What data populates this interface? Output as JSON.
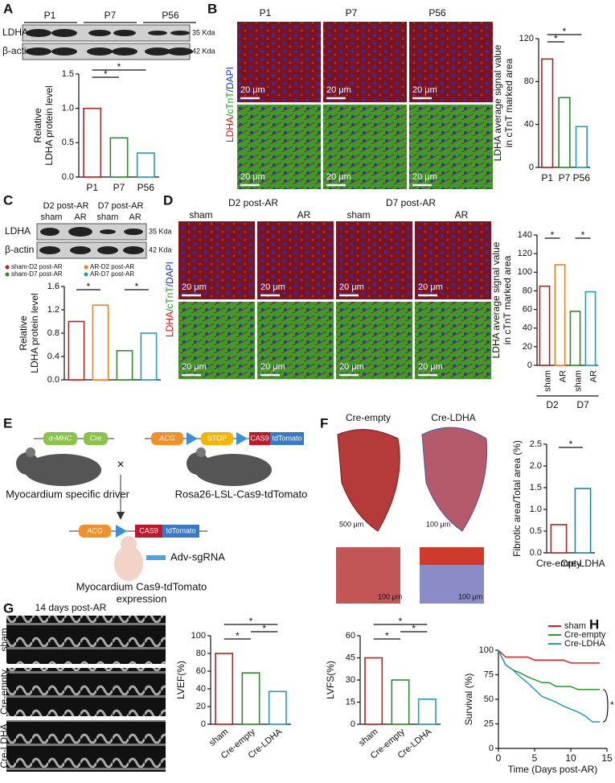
{
  "figure": {
    "panel_labels": [
      "A",
      "B",
      "C",
      "D",
      "E",
      "F",
      "G",
      "H"
    ],
    "a_blot": {
      "lanes": [
        "P1",
        "P7",
        "P56"
      ],
      "rows": [
        "LDHA",
        "β-actin"
      ],
      "sizes": [
        "35 Kda",
        "42 Kda"
      ]
    },
    "b_images": {
      "columns": [
        "P1",
        "P7",
        "P56"
      ],
      "stain": [
        "LDHA",
        "/cTnT",
        "/DAPI"
      ],
      "scale": "20 μm"
    },
    "c_blot": {
      "groups": [
        "D2 post-AR",
        "D7 post-AR"
      ],
      "lanes": [
        "sham",
        "AR",
        "sham",
        "AR"
      ],
      "rows": [
        "LDHA",
        "β-actin"
      ],
      "sizes": [
        "35 Kda",
        "42 Kda"
      ]
    },
    "d_images": {
      "groups": [
        "D2 post-AR",
        "D7 post-AR"
      ],
      "lanes": [
        "sham",
        "AR",
        "sham",
        "AR"
      ],
      "stain": [
        "LDHA",
        "/cTnT",
        "/DAPI"
      ],
      "scale": "20 μm"
    },
    "e_schematic": {
      "driver_gene": "α-MHC",
      "driver_cre": "Cre",
      "reporter": [
        "ACG",
        "STOP",
        "CAS9",
        "tdTomato"
      ],
      "cross": "×",
      "driver": "Myocardium specific driver",
      "reporter_mouse": "Rosa26-LSL-Cas9-tdTomato",
      "offspring": [
        "ACG",
        "CAS9",
        "tdTomato"
      ],
      "virus": "Adv-sgRNA",
      "result": [
        "Myocardium Cas9-tdTomato",
        "expression"
      ]
    },
    "f_images": {
      "columns": [
        "Cre-empty",
        "Cre-LDHA"
      ],
      "scale_large": "500 μm",
      "scale_small": "100 μm"
    },
    "g_images": {
      "title": "14 days post-AR",
      "rows": [
        "sham",
        "Cre-empty",
        "Cre-LDHA"
      ]
    }
  },
  "chart_data": [
    {
      "type": "bar",
      "categories": [
        "P1",
        "P7",
        "P56"
      ],
      "values": [
        1.0,
        0.57,
        0.35
      ],
      "colors": [
        "#b22222",
        "#2e8b2e",
        "#2a9bb0"
      ],
      "ylabel": [
        "Relative",
        "LDHA protein level"
      ],
      "ylim": [
        0,
        1.5
      ],
      "yticks": [
        {
          "value": 0,
          "label": "0.0"
        },
        {
          "value": 0.5,
          "label": "0.5"
        },
        {
          "value": 1,
          "label": "1.0"
        },
        {
          "value": 1.5,
          "label": "1.5"
        }
      ],
      "annotations": [
        "*",
        "*"
      ]
    },
    {
      "type": "bar",
      "categories": [
        "P1",
        "P7",
        "P56"
      ],
      "values": [
        101,
        65,
        38
      ],
      "colors": [
        "#b22222",
        "#2e8b2e",
        "#2a9bb0"
      ],
      "ylabel": [
        "LDHA average signal value",
        "in cTnT marked area"
      ],
      "ylim": [
        0,
        120
      ],
      "yticks": [
        0,
        40,
        80,
        120
      ],
      "annotations": [
        "*",
        "*"
      ]
    },
    {
      "type": "bar",
      "categories": [
        "sham-D2 post-AR",
        "AR-D2 post-AR",
        "sham-D7 post-AR",
        "AR-D7 post-AR"
      ],
      "values": [
        1.0,
        1.28,
        0.5,
        0.8
      ],
      "colors": [
        "#b22222",
        "#f07f1e",
        "#2e8b2e",
        "#2a9bb0"
      ],
      "legend": true,
      "ylabel": [
        "Relative",
        "LDHA protein level"
      ],
      "ylim": [
        0,
        1.6
      ],
      "yticks": [
        {
          "value": 0,
          "label": "0.0"
        },
        {
          "value": 0.4,
          "label": "0.4"
        },
        {
          "value": 0.8,
          "label": "0.8"
        },
        {
          "value": 1.2,
          "label": "1.2"
        },
        {
          "value": 1.6,
          "label": "1.6"
        }
      ],
      "annotations": [
        "*",
        "*"
      ]
    },
    {
      "type": "bar",
      "categories": [
        "sham",
        "AR",
        "sham",
        "AR"
      ],
      "groups": [
        "D2",
        "D7"
      ],
      "values": [
        85,
        108,
        58,
        79
      ],
      "colors": [
        "#b22222",
        "#f07f1e",
        "#2e8b2e",
        "#2a9bb0"
      ],
      "ylabel": [
        "LDHA average signal value",
        "in cTnT marked area"
      ],
      "ylim": [
        0,
        140
      ],
      "yticks": [
        0,
        20,
        40,
        60,
        80,
        100,
        120,
        140
      ],
      "annotations": [
        "*",
        "*"
      ]
    },
    {
      "type": "bar",
      "categories": [
        "Cre-empty",
        "Cre-LDHA"
      ],
      "values": [
        0.65,
        1.48
      ],
      "colors": [
        "#b22222",
        "#1a8a9a"
      ],
      "ylabel": [
        "Fibrotic area/Total area (%)"
      ],
      "ylim": [
        0,
        2.5
      ],
      "yticks": [
        {
          "value": 0,
          "label": "0.0"
        },
        {
          "value": 0.5,
          "label": "0.5"
        },
        {
          "value": 1,
          "label": "1.0"
        },
        {
          "value": 1.5,
          "label": "1.5"
        },
        {
          "value": 2,
          "label": "2.0"
        },
        {
          "value": 2.5,
          "label": "2.5"
        }
      ],
      "annotations": [
        "*"
      ]
    },
    {
      "type": "bar",
      "categories": [
        "sham",
        "Cre-empty",
        "Cre-LDHA"
      ],
      "values": [
        80,
        58,
        37
      ],
      "colors": [
        "#b22222",
        "#2e8b2e",
        "#2a9bb0"
      ],
      "ylabel": [
        "LVEF(%)"
      ],
      "ylim": [
        0,
        100
      ],
      "yticks": [
        0,
        20,
        40,
        60,
        80,
        100
      ],
      "annotations": [
        "*",
        "*",
        "*"
      ]
    },
    {
      "type": "bar",
      "categories": [
        "sham",
        "Cre-empty",
        "Cre-LDHA"
      ],
      "values": [
        45,
        30,
        17
      ],
      "colors": [
        "#b22222",
        "#2e8b2e",
        "#2a9bb0"
      ],
      "ylabel": [
        "LVFS(%)"
      ],
      "ylim": [
        0,
        60
      ],
      "yticks": [
        0,
        15,
        30,
        45,
        60
      ],
      "annotations": [
        "*",
        "*",
        "*"
      ]
    },
    {
      "type": "line",
      "xlabel": "Time (Days post-AR)",
      "ylabel": [
        "Survival (%)"
      ],
      "x": [
        0,
        1,
        2,
        3,
        4,
        5,
        6,
        7,
        8,
        9,
        10,
        11,
        12,
        13,
        14
      ],
      "series": [
        {
          "name": "sham",
          "color": "#d62728",
          "values": [
            100,
            93,
            93,
            93,
            93,
            90,
            90,
            90,
            90,
            90,
            87,
            87,
            87,
            87,
            87
          ]
        },
        {
          "name": "Cre-empty",
          "color": "#2e9b2e",
          "values": [
            100,
            85,
            80,
            77,
            73,
            70,
            67,
            67,
            63,
            63,
            63,
            60,
            60,
            60,
            60
          ]
        },
        {
          "name": "Cre-LDHA",
          "color": "#2a9bb0",
          "values": [
            100,
            85,
            80,
            73,
            67,
            60,
            53,
            50,
            47,
            43,
            40,
            37,
            33,
            27,
            27
          ]
        }
      ],
      "xlim": [
        0,
        15
      ],
      "xticks": [
        0,
        5,
        10,
        15
      ],
      "ylim": [
        0,
        100
      ],
      "yticks": [
        0,
        25,
        50,
        75,
        100
      ],
      "annotations": [
        "*"
      ]
    }
  ]
}
